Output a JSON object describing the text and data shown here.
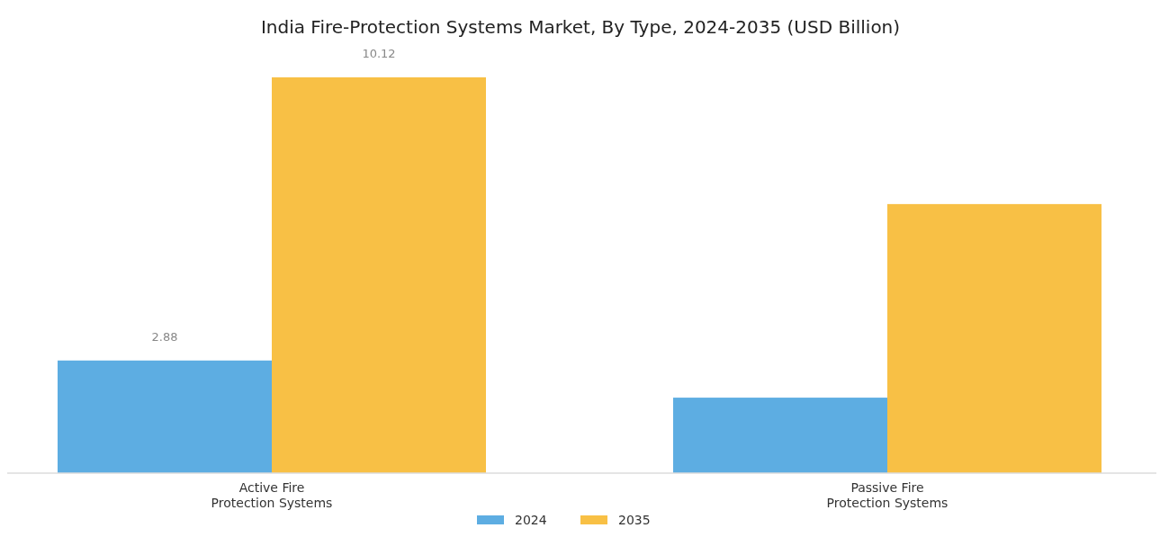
{
  "chart_data": {
    "type": "bar",
    "title": "India Fire-Protection Systems Market, By Type, 2024-2035 (USD Billion)",
    "categories": [
      "Active Fire Protection Systems",
      "Passive Fire Protection Systems"
    ],
    "series": [
      {
        "name": "2024",
        "color": "#5dade2",
        "values": [
          2.88,
          1.93
        ],
        "value_labels": [
          "2.88",
          null
        ]
      },
      {
        "name": "2035",
        "color": "#f8c045",
        "values": [
          10.12,
          6.88
        ],
        "value_labels": [
          "10.12",
          null
        ]
      }
    ],
    "legend": "bottom",
    "grid": false
  }
}
